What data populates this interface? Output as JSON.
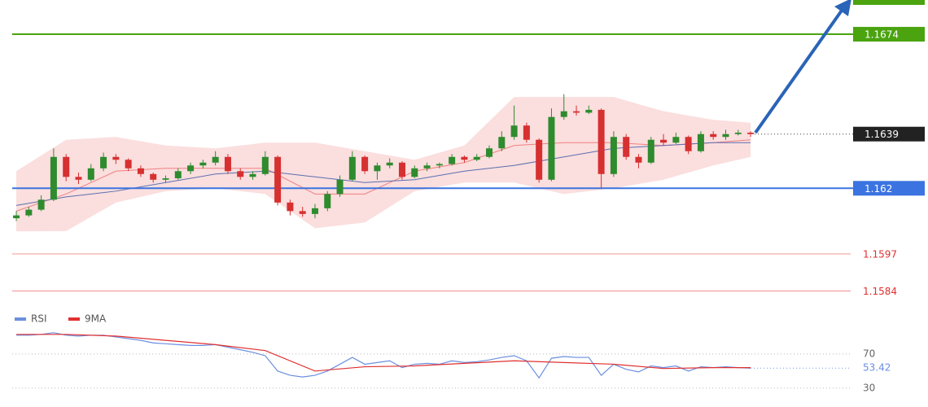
{
  "chart_data": [
    {
      "type": "candlestick",
      "candles": [
        [
          1.16095,
          1.1612,
          1.16085,
          1.16105
        ],
        [
          1.16105,
          1.16135,
          1.161,
          1.16125
        ],
        [
          1.16125,
          1.16175,
          1.1612,
          1.1616
        ],
        [
          1.1616,
          1.1634,
          1.16155,
          1.1631
        ],
        [
          1.1631,
          1.1632,
          1.16225,
          1.1624
        ],
        [
          1.1624,
          1.16255,
          1.16215,
          1.1623
        ],
        [
          1.1623,
          1.16285,
          1.16225,
          1.1627
        ],
        [
          1.1627,
          1.16325,
          1.1626,
          1.1631
        ],
        [
          1.1631,
          1.1632,
          1.16285,
          1.163
        ],
        [
          1.163,
          1.16305,
          1.1626,
          1.1627
        ],
        [
          1.1627,
          1.1628,
          1.1624,
          1.1625
        ],
        [
          1.1625,
          1.16255,
          1.1622,
          1.1623
        ],
        [
          1.1623,
          1.16245,
          1.1622,
          1.16235
        ],
        [
          1.16235,
          1.1627,
          1.1623,
          1.1626
        ],
        [
          1.1626,
          1.1629,
          1.1625,
          1.1628
        ],
        [
          1.1628,
          1.163,
          1.1627,
          1.1629
        ],
        [
          1.1629,
          1.1633,
          1.1628,
          1.1631
        ],
        [
          1.1631,
          1.1632,
          1.1625,
          1.1626
        ],
        [
          1.1626,
          1.1627,
          1.1623,
          1.1624
        ],
        [
          1.1624,
          1.1626,
          1.1623,
          1.1625
        ],
        [
          1.1625,
          1.1633,
          1.16245,
          1.1631
        ],
        [
          1.1631,
          1.16315,
          1.1614,
          1.1615
        ],
        [
          1.1615,
          1.1616,
          1.16105,
          1.1612
        ],
        [
          1.1612,
          1.16135,
          1.161,
          1.1611
        ],
        [
          1.1611,
          1.16145,
          1.16095,
          1.1613
        ],
        [
          1.1613,
          1.1619,
          1.1612,
          1.1618
        ],
        [
          1.1618,
          1.16245,
          1.1617,
          1.1623
        ],
        [
          1.1623,
          1.1633,
          1.16225,
          1.1631
        ],
        [
          1.1631,
          1.16315,
          1.1625,
          1.1626
        ],
        [
          1.1626,
          1.1629,
          1.1623,
          1.1628
        ],
        [
          1.1628,
          1.16305,
          1.1627,
          1.1629
        ],
        [
          1.1629,
          1.16295,
          1.1623,
          1.1624
        ],
        [
          1.1624,
          1.1628,
          1.16235,
          1.1627
        ],
        [
          1.1627,
          1.1629,
          1.1626,
          1.1628
        ],
        [
          1.1628,
          1.1629,
          1.1627,
          1.16285
        ],
        [
          1.16285,
          1.1632,
          1.1628,
          1.1631
        ],
        [
          1.1631,
          1.16315,
          1.1629,
          1.163
        ],
        [
          1.163,
          1.1632,
          1.16295,
          1.1631
        ],
        [
          1.1631,
          1.1635,
          1.16305,
          1.1634
        ],
        [
          1.1634,
          1.164,
          1.1633,
          1.1638
        ],
        [
          1.1638,
          1.1649,
          1.1637,
          1.1642
        ],
        [
          1.1642,
          1.1643,
          1.1636,
          1.1637
        ],
        [
          1.1637,
          1.16375,
          1.1622,
          1.1623
        ],
        [
          1.1623,
          1.1648,
          1.16225,
          1.1645
        ],
        [
          1.1645,
          1.1653,
          1.1644,
          1.1647
        ],
        [
          1.1647,
          1.1649,
          1.16455,
          1.16465
        ],
        [
          1.16465,
          1.1649,
          1.1646,
          1.16475
        ],
        [
          1.16475,
          1.1648,
          1.162,
          1.1625
        ],
        [
          1.1625,
          1.164,
          1.1624,
          1.1638
        ],
        [
          1.1638,
          1.1639,
          1.163,
          1.1631
        ],
        [
          1.1631,
          1.1632,
          1.1627,
          1.1629
        ],
        [
          1.1629,
          1.1638,
          1.16285,
          1.1637
        ],
        [
          1.1637,
          1.1639,
          1.1635,
          1.1636
        ],
        [
          1.1636,
          1.16395,
          1.16355,
          1.1638
        ],
        [
          1.1638,
          1.16385,
          1.1632,
          1.1633
        ],
        [
          1.1633,
          1.164,
          1.16325,
          1.1639
        ],
        [
          1.1639,
          1.164,
          1.1637,
          1.1638
        ],
        [
          1.1638,
          1.16405,
          1.1637,
          1.1639
        ],
        [
          1.1639,
          1.16405,
          1.16385,
          1.16395
        ],
        [
          1.16395,
          1.164,
          1.1638,
          1.1639
        ]
      ],
      "up_color": "#2e8b2e",
      "down_color": "#d63031",
      "xlim": [
        -0.33,
        67.04
      ],
      "ylim": [
        1.1579,
        1.1686
      ],
      "bands": {
        "x": [
          0,
          4,
          8,
          12,
          16,
          20,
          24,
          28,
          32,
          36,
          40,
          44,
          48,
          52,
          56,
          59
        ],
        "upper": [
          1.1626,
          1.1637,
          1.1638,
          1.1635,
          1.1634,
          1.1636,
          1.1636,
          1.1633,
          1.163,
          1.1635,
          1.1652,
          1.1652,
          1.1652,
          1.1647,
          1.1644,
          1.1643
        ],
        "lower": [
          1.16049,
          1.1605,
          1.1615,
          1.1619,
          1.162,
          1.1618,
          1.1606,
          1.1608,
          1.1619,
          1.1622,
          1.1622,
          1.1618,
          1.162,
          1.1623,
          1.1628,
          1.1631
        ],
        "mid": [
          1.1612,
          1.1618,
          1.1626,
          1.1627,
          1.1627,
          1.1627,
          1.1618,
          1.1618,
          1.1626,
          1.1629,
          1.1635,
          1.1636,
          1.1636,
          1.1635,
          1.1636,
          1.1637
        ],
        "ma": [
          1.1614,
          1.1617,
          1.1619,
          1.1622,
          1.1625,
          1.1626,
          1.1624,
          1.1622,
          1.1623,
          1.1626,
          1.1628,
          1.1631,
          1.1634,
          1.1635,
          1.1636,
          1.1636
        ],
        "band_color": "#f7b6b6",
        "mid_color": "#f08080",
        "ma_color": "#5a6fb0"
      },
      "levels": [
        {
          "value": 1.1674,
          "color": "#4aa30f",
          "boxed": true
        },
        {
          "value": 1.162,
          "color": "#3b73e0",
          "boxed": true
        },
        {
          "value": 1.1597,
          "color": "#f2a0a0",
          "boxed": false,
          "text_color": "#e03030"
        },
        {
          "value": 1.1584,
          "color": "#f2a0a0",
          "boxed": false,
          "text_color": "#e03030"
        }
      ],
      "last_price": {
        "value": 1.1639,
        "color": "#222222"
      }
    },
    {
      "type": "line",
      "ylim": [
        25,
        115
      ],
      "yticks": [
        70,
        30
      ],
      "last_value": 53.42,
      "series": [
        {
          "name": "RSI",
          "color": "#6a8fe0",
          "x": [
            0,
            1,
            2,
            3,
            4,
            5,
            6,
            7,
            8,
            9,
            10,
            11,
            12,
            13,
            14,
            15,
            16,
            17,
            18,
            19,
            20,
            21,
            22,
            23,
            24,
            25,
            26,
            27,
            28,
            29,
            30,
            31,
            32,
            33,
            34,
            35,
            36,
            37,
            38,
            39,
            40,
            41,
            42,
            43,
            44,
            45,
            46,
            47,
            48,
            49,
            50,
            51,
            52,
            53,
            54,
            55,
            56,
            57,
            58,
            59
          ],
          "values": [
            92,
            92,
            93,
            95,
            92,
            91,
            92,
            92,
            90,
            88,
            86,
            83,
            82,
            81,
            80,
            80,
            81,
            78,
            75,
            72,
            68,
            50,
            45,
            43,
            45,
            50,
            58,
            66,
            58,
            60,
            62,
            54,
            58,
            59,
            58,
            62,
            60,
            61,
            63,
            66,
            68,
            62,
            42,
            65,
            67,
            66,
            66,
            45,
            58,
            52,
            49,
            56,
            54,
            56,
            50,
            55,
            54,
            55,
            54,
            53.42
          ]
        },
        {
          "name": "9MA",
          "color": "#e03030",
          "x": [
            0,
            4,
            8,
            12,
            16,
            20,
            24,
            28,
            32,
            36,
            40,
            44,
            48,
            52,
            56,
            59
          ],
          "values": [
            93,
            93,
            91,
            86,
            81,
            74,
            50,
            55,
            56,
            59,
            62,
            60,
            58,
            53,
            54,
            54
          ]
        }
      ]
    }
  ]
}
